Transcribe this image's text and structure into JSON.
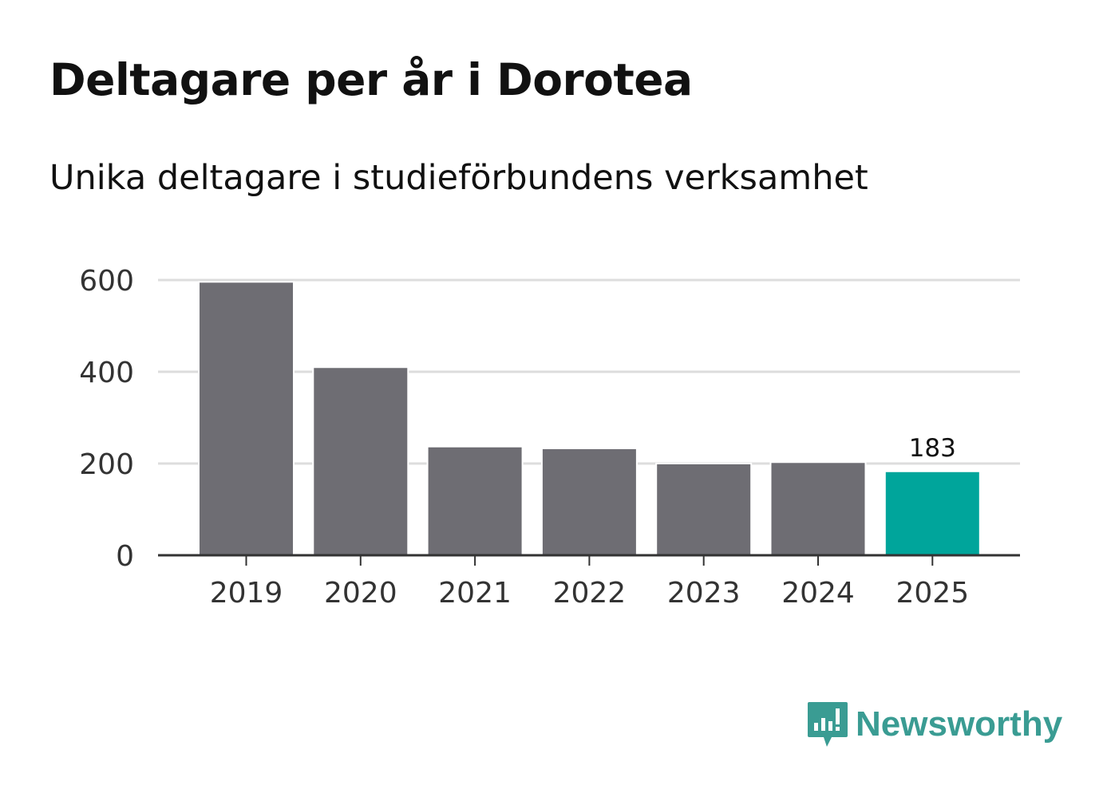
{
  "chart_data": {
    "type": "bar",
    "title": "Deltagare per år i Dorotea",
    "subtitle": "Unika deltagare i studieförbundens verksamhet",
    "xlabel": "",
    "ylabel": "",
    "categories": [
      "2019",
      "2020",
      "2021",
      "2022",
      "2023",
      "2024",
      "2025"
    ],
    "values": [
      596,
      410,
      237,
      233,
      200,
      203,
      183
    ],
    "highlight_index": 6,
    "data_labels": [
      {
        "index": 6,
        "text": "183"
      }
    ],
    "ylim": [
      0,
      600
    ],
    "yticks": [
      0,
      200,
      400,
      600
    ],
    "ytick_labels": [
      "0",
      "200",
      "400",
      "600"
    ],
    "grid": true,
    "colors": {
      "default": "#6e6d73",
      "highlight": "#00a59b",
      "grid": "#dddddd",
      "axis": "#333333"
    }
  },
  "brand": {
    "name": "Newsworthy",
    "color": "#3a9c93"
  }
}
